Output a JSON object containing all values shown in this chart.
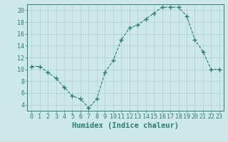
{
  "x": [
    0,
    1,
    2,
    3,
    4,
    5,
    6,
    7,
    8,
    9,
    10,
    11,
    12,
    13,
    14,
    15,
    16,
    17,
    18,
    19,
    20,
    21,
    22,
    23
  ],
  "y": [
    10.5,
    10.5,
    9.5,
    8.5,
    7.0,
    5.5,
    5.0,
    3.5,
    5.0,
    9.5,
    11.5,
    15.0,
    17.0,
    17.5,
    18.5,
    19.5,
    20.5,
    20.5,
    20.5,
    19.0,
    15.0,
    13.0,
    10.0,
    10.0
  ],
  "line_color": "#2d7d6e",
  "marker": "+",
  "marker_size": 4,
  "marker_linewidth": 1.0,
  "bg_color": "#cde8e8",
  "grid_color": "#afd0d0",
  "xlabel": "Humidex (Indice chaleur)",
  "ylim": [
    3,
    21
  ],
  "xlim": [
    -0.5,
    23.5
  ],
  "yticks": [
    4,
    6,
    8,
    10,
    12,
    14,
    16,
    18,
    20
  ],
  "xticks": [
    0,
    1,
    2,
    3,
    4,
    5,
    6,
    7,
    8,
    9,
    10,
    11,
    12,
    13,
    14,
    15,
    16,
    17,
    18,
    19,
    20,
    21,
    22,
    23
  ],
  "tick_color": "#2d7d6e",
  "label_color": "#2d7d6e",
  "font_size": 6,
  "xlabel_font_size": 7.5
}
